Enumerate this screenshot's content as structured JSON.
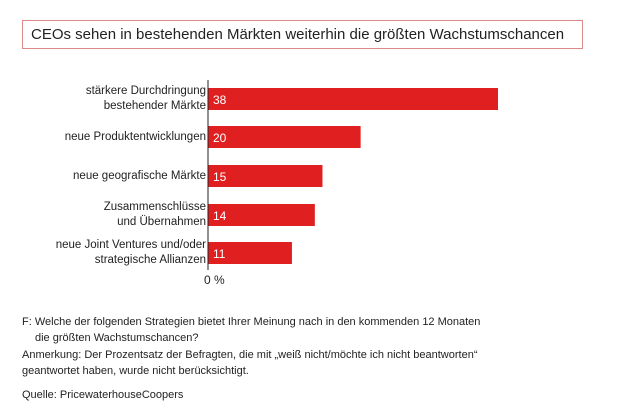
{
  "chart_data": {
    "type": "bar",
    "orientation": "horizontal",
    "title": "CEOs sehen in bestehenden Märkten weiterhin die größten Wachstumschancen",
    "categories": [
      [
        "stärkere Durchdringung",
        "bestehender Märkte"
      ],
      [
        "neue Produktentwicklungen"
      ],
      [
        "neue geografische Märkte"
      ],
      [
        "Zusammenschlüsse",
        "und Übernahmen"
      ],
      [
        "neue Joint Ventures und/oder",
        "strategische Allianzen"
      ]
    ],
    "values": [
      38,
      20,
      15,
      14,
      11
    ],
    "axis_label": "0 %",
    "xlim": [
      0,
      38
    ],
    "bar_color": "#e02020",
    "grid": false
  },
  "footer": {
    "question_1": "F: Welche der folgenden Strategien bietet Ihrer Meinung nach in den kommenden 12 Monaten",
    "question_2": "die größten Wachstumschancen?",
    "note_1": "Anmerkung: Der Prozentsatz der Befragten, die mit „weiß nicht/möchte ich nicht beantworten“",
    "note_2": "geantwortet haben, wurde nicht berücksichtigt.",
    "source": "Quelle: PricewaterhouseCoopers"
  }
}
